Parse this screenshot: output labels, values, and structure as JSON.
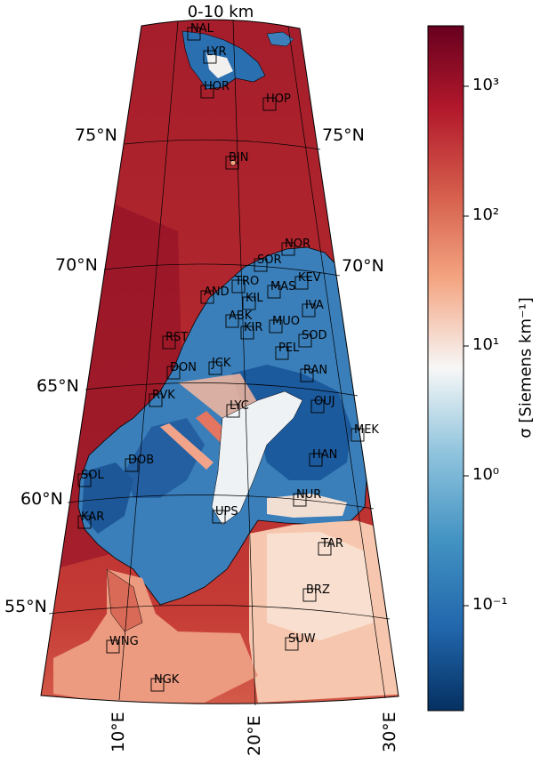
{
  "map": {
    "title": "0-10 km",
    "lat_labels": [
      {
        "text": "75°N",
        "lat": 75
      },
      {
        "text": "70°N",
        "lat": 70
      },
      {
        "text": "65°N",
        "lat": 65
      },
      {
        "text": "60°N",
        "lat": 60
      },
      {
        "text": "55°N",
        "lat": 55
      }
    ],
    "lat_labels_right": [
      "75°N",
      "70°N"
    ],
    "lon_labels": [
      "10°E",
      "20°E",
      "30°E"
    ],
    "stations": [
      {
        "code": "NAL"
      },
      {
        "code": "LYR"
      },
      {
        "code": "HOR"
      },
      {
        "code": "HOP"
      },
      {
        "code": "BJN"
      },
      {
        "code": "NOR"
      },
      {
        "code": "SOR"
      },
      {
        "code": "KEV"
      },
      {
        "code": "TRO"
      },
      {
        "code": "MAS"
      },
      {
        "code": "AND"
      },
      {
        "code": "KIL"
      },
      {
        "code": "IVA"
      },
      {
        "code": "ABK"
      },
      {
        "code": "MUO"
      },
      {
        "code": "KIR"
      },
      {
        "code": "SOD"
      },
      {
        "code": "RST"
      },
      {
        "code": "PEL"
      },
      {
        "code": "JCK"
      },
      {
        "code": "DON"
      },
      {
        "code": "RAN"
      },
      {
        "code": "RVK"
      },
      {
        "code": "LYC"
      },
      {
        "code": "OUJ"
      },
      {
        "code": "MEK"
      },
      {
        "code": "DOB"
      },
      {
        "code": "HAN"
      },
      {
        "code": "SOL"
      },
      {
        "code": "NUR"
      },
      {
        "code": "UPS"
      },
      {
        "code": "KAR"
      },
      {
        "code": "TAR"
      },
      {
        "code": "BRZ"
      },
      {
        "code": "WNG"
      },
      {
        "code": "SUW"
      },
      {
        "code": "NGK"
      }
    ]
  },
  "colorbar": {
    "label": "σ [Siemens km⁻¹]",
    "colormap": "RdBu_r",
    "scale": "log",
    "range": [
      0.015,
      3000
    ],
    "ticks": [
      {
        "text": "10³",
        "value": 1000
      },
      {
        "text": "10²",
        "value": 100
      },
      {
        "text": "10¹",
        "value": 10
      },
      {
        "text": "10⁰",
        "value": 1
      },
      {
        "text": "10⁻¹",
        "value": 0.1
      }
    ]
  },
  "colors": {
    "ocean": "#b6222b",
    "ocean_deep": "#8d0d24",
    "land_resistive": "#2166ac",
    "land_pale": "#f7b799",
    "coast": "#000000"
  }
}
